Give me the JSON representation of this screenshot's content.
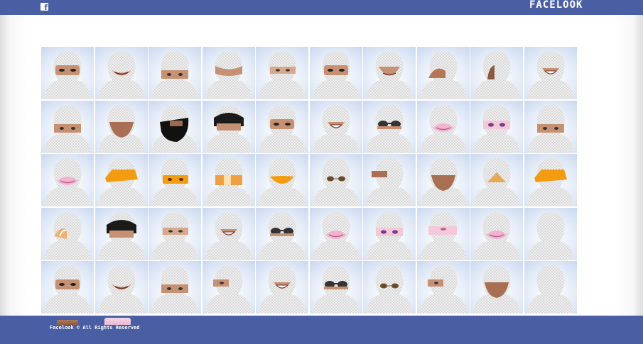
{
  "header": {
    "facebook_icon": "facebook-f-icon",
    "brand": "FACELOOK"
  },
  "grid": {
    "tiles": [
      [
        "eyes-asian",
        "mouth",
        "eyes-tan",
        "eyes-top",
        "eyes-wide",
        "eyes-asian",
        "lips-smile",
        "cheek",
        "ear",
        "mouth-grin"
      ],
      [
        "eyes-tan",
        "chin",
        "beard",
        "hair-dark",
        "eyes-asian",
        "mouth-grin",
        "sunglasses",
        "lips-pink",
        "eyes-makeup",
        "eyes-tan"
      ],
      [
        "lips-pink",
        "hat-orange",
        "eyes-orange",
        "band-orange",
        "lips-orange",
        "glasses-small",
        "eye-side",
        "chin",
        "nose-orange",
        "hat-orange"
      ],
      [
        "ear-orange",
        "hair-dark",
        "eyes-wide",
        "mouth-grin",
        "sunglasses",
        "lips-pink",
        "eyes-makeup",
        "eyes-pink",
        "lips-pink",
        "blank"
      ],
      [
        "eyes-asian",
        "mouth",
        "eyes-tan",
        "eyes-side",
        "mouth-grin",
        "sunglasses",
        "glasses-small",
        "eyes-side",
        "chin",
        "blank"
      ]
    ]
  },
  "footer": {
    "copyright": "Facelook © All Rights Reserved"
  }
}
